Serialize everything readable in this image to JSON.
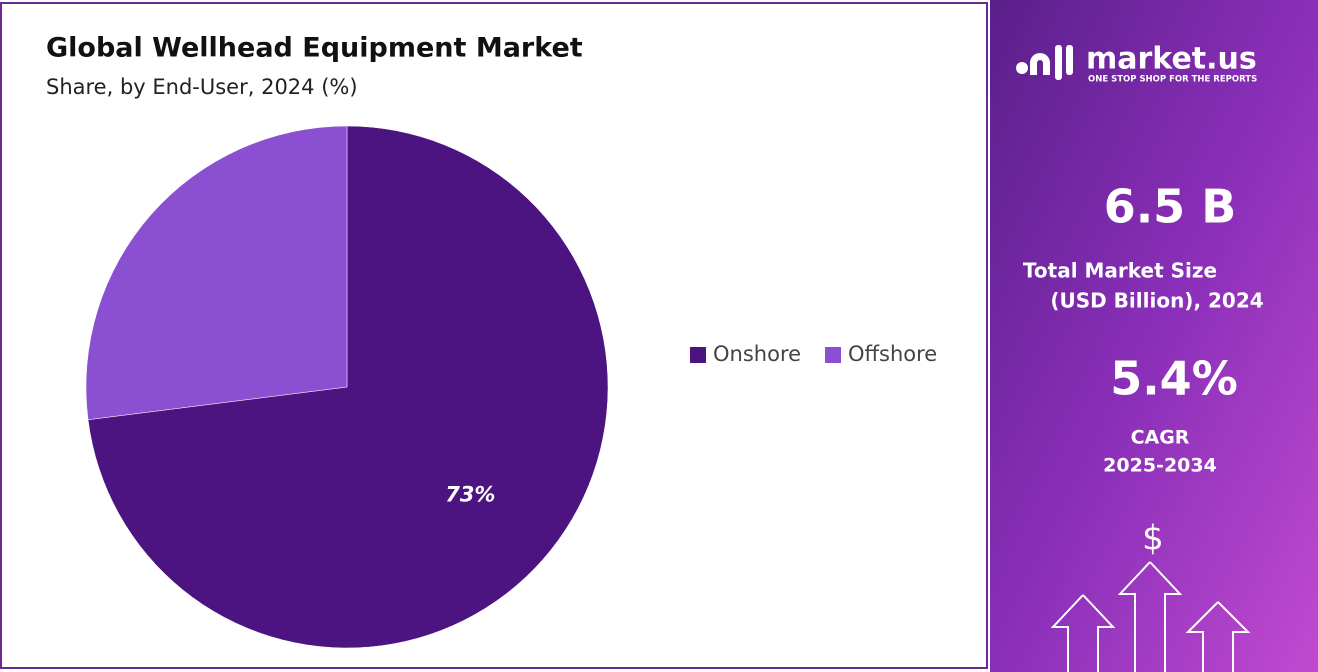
{
  "chart_data": {
    "type": "pie",
    "title": "Global Wellhead Equipment Market",
    "subtitle": "Share, by End-User, 2024 (%)",
    "categories": [
      "Onshore",
      "Offshore"
    ],
    "values": [
      73,
      27
    ],
    "value_labels": [
      "73%",
      null
    ],
    "colors": [
      "#4b1480",
      "#8b50d2"
    ],
    "legend_position": "right"
  },
  "sidebar": {
    "brand": "market.us",
    "tagline": "ONE STOP SHOP FOR THE REPORTS",
    "market_size": "6.5 B",
    "market_size_label_1": "Total Market Size",
    "market_size_label_2": "(USD Billion), 2024",
    "cagr": "5.4%",
    "cagr_label_1": "CAGR",
    "cagr_label_2": "2025-2034",
    "icon": "$"
  }
}
